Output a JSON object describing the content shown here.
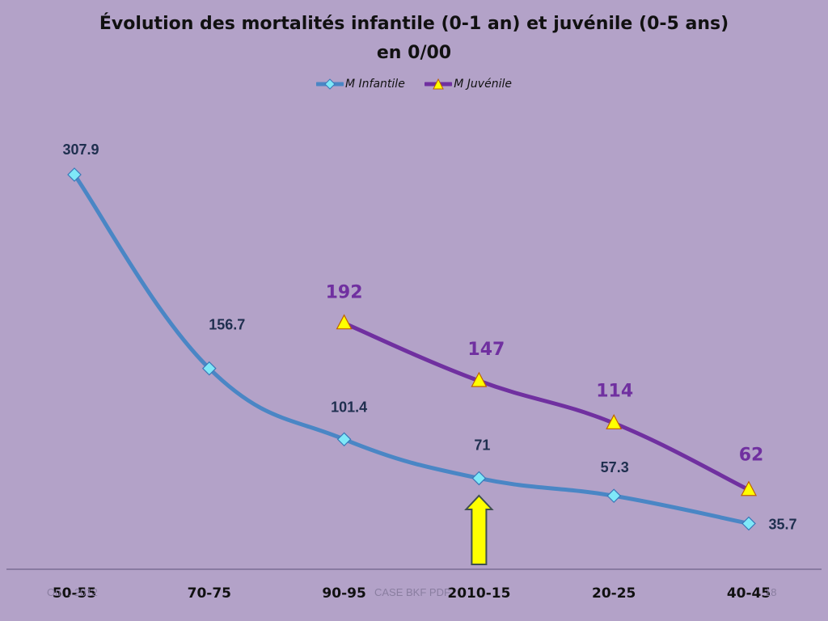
{
  "title": {
    "line1": "Évolution des mortalités infantile (0-1 an) et juvénile (0-5 ans)",
    "line2": "en 0/00"
  },
  "footer": {
    "left": "Ou… 2012",
    "center": "CASE BKF PDF",
    "right": "18"
  },
  "colors": {
    "background": "#b3a2c8",
    "infantile": "#4a86c5",
    "juvenile": "#7030a0",
    "infantile_marker": "#7fe8f8",
    "juvenile_marker": "#ffff00",
    "arrow": "#ffff00",
    "infantile_label": "#1f2f4f",
    "juvenile_label": "#7030a0"
  },
  "chart_data": {
    "type": "line",
    "title": "Évolution des mortalités infantile (0-1 an) et juvénile (0-5 ans) en 0/00",
    "categories": [
      "50-55",
      "70-75",
      "90-95",
      "2010-15",
      "20-25",
      "40-45"
    ],
    "series": [
      {
        "name": "M Infantile",
        "marker": "diamond",
        "values": [
          307.9,
          156.7,
          101.4,
          71,
          57.3,
          35.7
        ],
        "labels": [
          "307.9",
          "156.7",
          "101.4",
          "71",
          "57.3",
          "35.7"
        ]
      },
      {
        "name": "M Juvénile",
        "marker": "triangle",
        "values": [
          null,
          null,
          192,
          147,
          114,
          62
        ],
        "labels": [
          "",
          "",
          "192",
          "147",
          "114",
          "62"
        ]
      }
    ],
    "ylim": [
      0,
      340
    ],
    "grid": false,
    "legend": "top",
    "annotation": "arrow-up at 2010-15"
  }
}
